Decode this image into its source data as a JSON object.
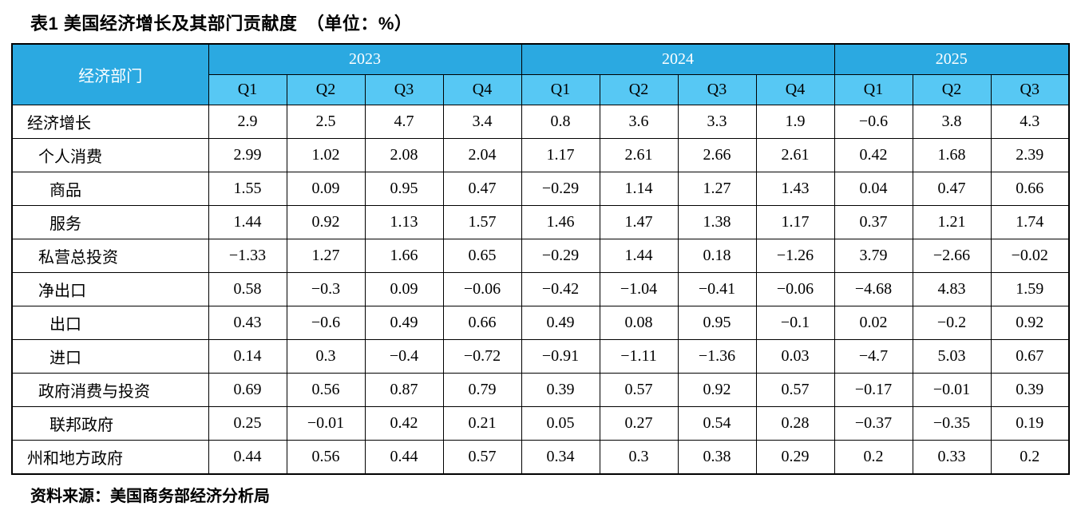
{
  "title": "表1 美国经济增长及其部门贡献度　（单位：%）",
  "footer": "资料来源：美国商务部经济分析局",
  "colors": {
    "year_header_bg": "#2ba9e1",
    "quarter_header_bg": "#57c8f4",
    "year_header_text": "#ffffff",
    "border": "#000000"
  },
  "table": {
    "corner_header": "经济部门",
    "year_groups": [
      {
        "label": "2023",
        "quarters": [
          "Q1",
          "Q2",
          "Q3",
          "Q4"
        ]
      },
      {
        "label": "2024",
        "quarters": [
          "Q1",
          "Q2",
          "Q3",
          "Q4"
        ]
      },
      {
        "label": "2025",
        "quarters": [
          "Q1",
          "Q2",
          "Q3"
        ]
      }
    ],
    "rows": [
      {
        "label": "经济增长",
        "indent": 0,
        "values": [
          "2.9",
          "2.5",
          "4.7",
          "3.4",
          "0.8",
          "3.6",
          "3.3",
          "1.9",
          "−0.6",
          "3.8",
          "4.3"
        ]
      },
      {
        "label": "个人消费",
        "indent": 1,
        "values": [
          "2.99",
          "1.02",
          "2.08",
          "2.04",
          "1.17",
          "2.61",
          "2.66",
          "2.61",
          "0.42",
          "1.68",
          "2.39"
        ]
      },
      {
        "label": "商品",
        "indent": 2,
        "values": [
          "1.55",
          "0.09",
          "0.95",
          "0.47",
          "−0.29",
          "1.14",
          "1.27",
          "1.43",
          "0.04",
          "0.47",
          "0.66"
        ]
      },
      {
        "label": "服务",
        "indent": 2,
        "values": [
          "1.44",
          "0.92",
          "1.13",
          "1.57",
          "1.46",
          "1.47",
          "1.38",
          "1.17",
          "0.37",
          "1.21",
          "1.74"
        ]
      },
      {
        "label": "私营总投资",
        "indent": 1,
        "values": [
          "−1.33",
          "1.27",
          "1.66",
          "0.65",
          "−0.29",
          "1.44",
          "0.18",
          "−1.26",
          "3.79",
          "−2.66",
          "−0.02"
        ]
      },
      {
        "label": "净出口",
        "indent": 1,
        "values": [
          "0.58",
          "−0.3",
          "0.09",
          "−0.06",
          "−0.42",
          "−1.04",
          "−0.41",
          "−0.06",
          "−4.68",
          "4.83",
          "1.59"
        ]
      },
      {
        "label": "出口",
        "indent": 2,
        "values": [
          "0.43",
          "−0.6",
          "0.49",
          "0.66",
          "0.49",
          "0.08",
          "0.95",
          "−0.1",
          "0.02",
          "−0.2",
          "0.92"
        ]
      },
      {
        "label": "进口",
        "indent": 2,
        "values": [
          "0.14",
          "0.3",
          "−0.4",
          "−0.72",
          "−0.91",
          "−1.11",
          "−1.36",
          "0.03",
          "−4.7",
          "5.03",
          "0.67"
        ]
      },
      {
        "label": "政府消费与投资",
        "indent": 1,
        "values": [
          "0.69",
          "0.56",
          "0.87",
          "0.79",
          "0.39",
          "0.57",
          "0.92",
          "0.57",
          "−0.17",
          "−0.01",
          "0.39"
        ]
      },
      {
        "label": "联邦政府",
        "indent": 2,
        "values": [
          "0.25",
          "−0.01",
          "0.42",
          "0.21",
          "0.05",
          "0.27",
          "0.54",
          "0.28",
          "−0.37",
          "−0.35",
          "0.19"
        ]
      },
      {
        "label": "州和地方政府",
        "indent": 0,
        "values": [
          "0.44",
          "0.56",
          "0.44",
          "0.57",
          "0.34",
          "0.3",
          "0.38",
          "0.29",
          "0.2",
          "0.33",
          "0.2"
        ]
      }
    ]
  }
}
